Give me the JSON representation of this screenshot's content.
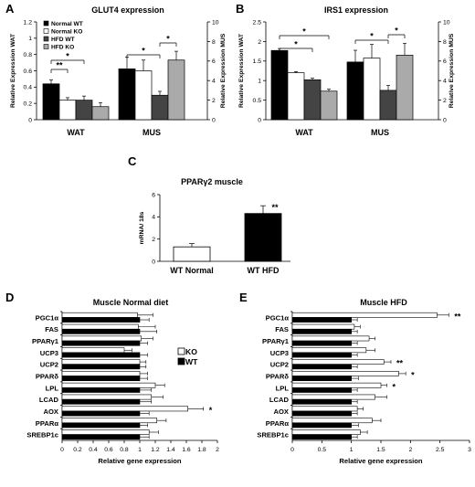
{
  "chart_data": [
    {
      "panel": "A",
      "type": "bar",
      "title": "GLUT4 expression",
      "categories": [
        "WAT",
        "MUS"
      ],
      "ylabel_left": "Relative Expression WAT",
      "ylabel_right": "Relative Expression MUS",
      "ylim_left": [
        0,
        1.2
      ],
      "yticks_left": [
        "0",
        "0.2",
        "0.4",
        "0.6",
        "0.8",
        "1",
        "1.2"
      ],
      "ylim_right": [
        0,
        10
      ],
      "yticks_right": [
        "0",
        "2",
        "4",
        "6",
        "8",
        "10"
      ],
      "series": [
        {
          "name": "Normal WT",
          "color": "#000000",
          "values": [
            0.44,
            5.2
          ],
          "errors": [
            0.05,
            1.2
          ]
        },
        {
          "name": "Normal KO",
          "color": "#ffffff",
          "values": [
            0.24,
            5.0
          ],
          "errors": [
            0.03,
            1.1
          ]
        },
        {
          "name": "HFD WT",
          "color": "#444444",
          "values": [
            0.24,
            2.5
          ],
          "errors": [
            0.05,
            0.4
          ]
        },
        {
          "name": "HFD KO",
          "color": "#aaaaaa",
          "values": [
            0.16,
            6.1
          ],
          "errors": [
            0.05,
            0.9
          ]
        }
      ],
      "significance": [
        {
          "group": 0,
          "from": 0,
          "to": 1,
          "label": "**"
        },
        {
          "group": 0,
          "from": 0,
          "to": 2,
          "label": "*"
        },
        {
          "group": 1,
          "from": 0,
          "to": 2,
          "label": "*"
        },
        {
          "group": 1,
          "from": 2,
          "to": 3,
          "label": "*"
        }
      ],
      "legend": "top-left"
    },
    {
      "panel": "B",
      "type": "bar",
      "title": "IRS1 expression",
      "categories": [
        "WAT",
        "MUS"
      ],
      "ylabel_left": "Relative Expression WAT",
      "ylabel_right": "Relative Expression MUS",
      "ylim_left": [
        0,
        2.5
      ],
      "yticks_left": [
        "0",
        "0.5",
        "1",
        "1.5",
        "2",
        "2.5"
      ],
      "ylim_right": [
        0,
        10
      ],
      "yticks_right": [
        "0",
        "2",
        "4",
        "6",
        "8",
        "10"
      ],
      "series": [
        {
          "name": "Normal WT",
          "color": "#000000",
          "values": [
            1.77,
            5.9
          ],
          "errors": [
            0.05,
            1.2
          ]
        },
        {
          "name": "Normal KO",
          "color": "#ffffff",
          "values": [
            1.2,
            6.3
          ],
          "errors": [
            0.03,
            1.4
          ]
        },
        {
          "name": "HFD WT",
          "color": "#444444",
          "values": [
            1.02,
            3.0
          ],
          "errors": [
            0.04,
            0.5
          ]
        },
        {
          "name": "HFD KO",
          "color": "#aaaaaa",
          "values": [
            0.73,
            6.6
          ],
          "errors": [
            0.05,
            1.2
          ]
        }
      ],
      "significance": [
        {
          "group": 0,
          "from": 0,
          "to": 2,
          "label": "*"
        },
        {
          "group": 0,
          "from": 0,
          "to": 3,
          "label": "*"
        },
        {
          "group": 1,
          "from": 0,
          "to": 2,
          "label": "*"
        },
        {
          "group": 1,
          "from": 2,
          "to": 3,
          "label": "*"
        }
      ]
    },
    {
      "panel": "C",
      "type": "bar",
      "title": "PPARγ2 muscle",
      "ylabel": "mRNA/ 18s",
      "categories": [
        "WT Normal",
        "WT HFD"
      ],
      "ylim": [
        0,
        6
      ],
      "yticks": [
        "0",
        "2",
        "4",
        "6"
      ],
      "series": [
        {
          "colors": [
            "#ffffff",
            "#000000"
          ],
          "values": [
            1.3,
            4.3
          ],
          "errors": [
            0.3,
            0.7
          ]
        }
      ],
      "annotations": [
        {
          "bar": 1,
          "label": "**"
        }
      ]
    },
    {
      "panel": "D",
      "type": "bar",
      "orientation": "horizontal",
      "title": "Muscle Normal diet",
      "xlabel": "Relative gene expression",
      "xlim": [
        0,
        2
      ],
      "xticks": [
        "0",
        "0.2",
        "0.4",
        "0.6",
        "0.8",
        "1",
        "1.2",
        "1.4",
        "1.6",
        "1.8",
        "2"
      ],
      "categories": [
        "PGC1α",
        "FAS",
        "PPARγ1",
        "UCP3",
        "UCP2",
        "PPARδ",
        "LPL",
        "LCAD",
        "AOX",
        "PPARα",
        "SREBP1c"
      ],
      "series": [
        {
          "name": "KO",
          "color": "#ffffff",
          "values": [
            0.97,
            0.98,
            1.02,
            0.8,
            1.0,
            1.0,
            1.2,
            1.15,
            1.62,
            1.22,
            1.12
          ],
          "errors": [
            0.2,
            0.22,
            0.15,
            0.1,
            0.08,
            0.1,
            0.12,
            0.15,
            0.2,
            0.12,
            0.12
          ]
        },
        {
          "name": "WT",
          "color": "#000000",
          "values": [
            1.0,
            1.0,
            1.0,
            1.0,
            1.0,
            1.0,
            1.0,
            1.0,
            1.0,
            1.0,
            1.0
          ],
          "errors": [
            0.12,
            0.22,
            0.1,
            0.1,
            0.08,
            0.1,
            0.15,
            0.15,
            0.12,
            0.1,
            0.12
          ]
        }
      ],
      "annotations": [
        {
          "category": 8,
          "label": "*"
        }
      ],
      "legend": "right"
    },
    {
      "panel": "E",
      "type": "bar",
      "orientation": "horizontal",
      "title": "Muscle HFD",
      "xlabel": "Relative gene expression",
      "xlim": [
        0,
        3
      ],
      "xticks": [
        "0",
        "0.5",
        "1",
        "1.5",
        "2",
        "2.5",
        "3"
      ],
      "categories": [
        "PGC1α",
        "FAS",
        "PPARγ1",
        "UCP3",
        "UCP2",
        "PPARδ",
        "LPL",
        "LCAD",
        "AOX",
        "PPARα",
        "SREBP1c"
      ],
      "series": [
        {
          "name": "KO",
          "color": "#ffffff",
          "values": [
            2.45,
            1.05,
            1.3,
            1.25,
            1.55,
            1.8,
            1.5,
            1.4,
            1.1,
            1.35,
            1.15
          ],
          "errors": [
            0.2,
            0.1,
            0.1,
            0.15,
            0.12,
            0.12,
            0.1,
            0.2,
            0.1,
            0.15,
            0.12
          ]
        },
        {
          "name": "WT",
          "color": "#000000",
          "values": [
            1.0,
            1.0,
            1.0,
            1.0,
            1.0,
            1.0,
            1.0,
            1.0,
            1.0,
            1.0,
            1.0
          ],
          "errors": [
            0.1,
            0.1,
            0.1,
            0.1,
            0.1,
            0.12,
            0.1,
            0.1,
            0.1,
            0.12,
            0.1
          ]
        }
      ],
      "annotations": [
        {
          "category": 0,
          "label": "**"
        },
        {
          "category": 4,
          "label": "**"
        },
        {
          "category": 5,
          "label": "*"
        },
        {
          "category": 6,
          "label": "*"
        }
      ]
    }
  ]
}
